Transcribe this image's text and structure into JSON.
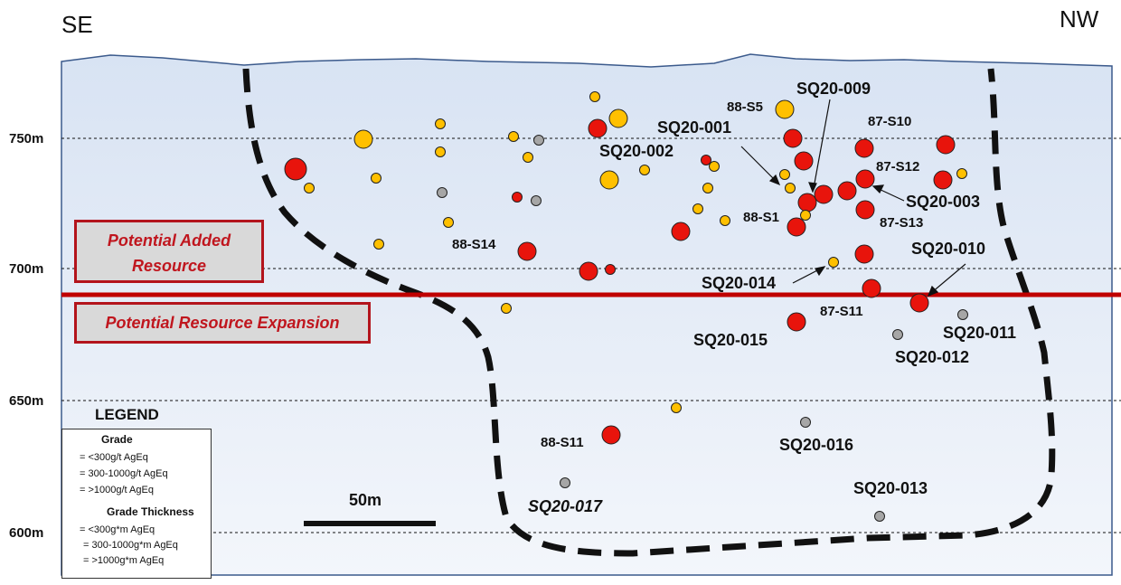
{
  "directions": {
    "left": "SE",
    "right": "NW"
  },
  "elevations": [
    {
      "label": "750m",
      "value": 750
    },
    {
      "label": "700m",
      "value": 700
    },
    {
      "label": "650m",
      "value": 650
    },
    {
      "label": "600m",
      "value": 600
    }
  ],
  "resource_labels": {
    "added_line1": "Potential Added",
    "added_line2": "Resource",
    "expansion": "Potential Resource Expansion"
  },
  "scale_bar": {
    "label": "50m",
    "length_m": 50
  },
  "legend": {
    "title": "LEGEND",
    "grade_heading": "Grade",
    "grade_items": [
      {
        "label": "= <300g/t AgEq",
        "color": "#a6a6a6"
      },
      {
        "label": "= 300-1000g/t AgEq",
        "color": "#ffc000"
      },
      {
        "label": "= >1000g/t AgEq",
        "color": "#e8140c"
      }
    ],
    "thickness_heading": "Grade Thickness",
    "thickness_items": [
      {
        "label": "= <300g*m AgEq",
        "class": "small"
      },
      {
        "label": "= 300-1000g*m AgEq",
        "class": "medium"
      },
      {
        "label": "= >1000g*m AgEq",
        "class": "large"
      }
    ]
  },
  "colors": {
    "low_grade": "#a6a6a6",
    "mid_grade": "#ffc000",
    "high_grade": "#e8140c",
    "section_line": "#c00000",
    "background_top": "#d8e3f3",
    "background_bottom": "#f3f6fb"
  },
  "hole_labels": [
    "SQ20-009",
    "88-S5",
    "SQ20-001",
    "87-S10",
    "SQ20-002",
    "87-S12",
    "SQ20-003",
    "88-S1",
    "87-S13",
    "88-S14",
    "SQ20-010",
    "SQ20-014",
    "87-S11",
    "SQ20-015",
    "SQ20-011",
    "SQ20-012",
    "88-S11",
    "SQ20-016",
    "SQ20-017",
    "SQ20-013"
  ]
}
